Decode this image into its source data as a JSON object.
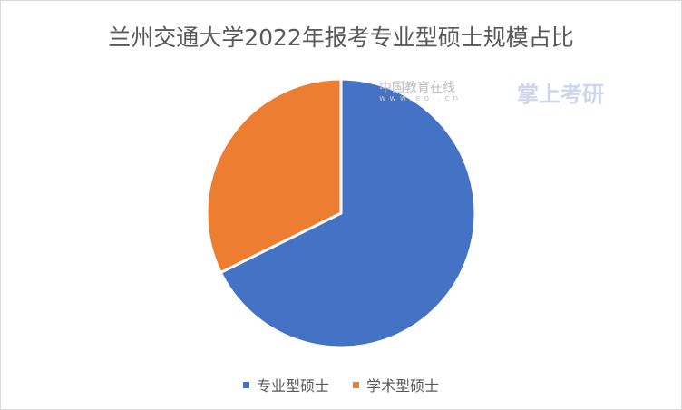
{
  "chart_data": {
    "type": "pie",
    "title": "兰州交通大学2022年报考专业型硕士规模占比",
    "categories": [
      "专业型硕士",
      "学术型硕士"
    ],
    "values": [
      67.7,
      32.3
    ],
    "colors": [
      "#4472c4",
      "#ed7d31"
    ],
    "start_angle": "12 o'clock, clockwise",
    "legend_position": "bottom"
  },
  "watermarks": {
    "eol_text": "中国教育在线",
    "eol_url": "www.eol.cn",
    "zsks_text": "掌上考研"
  }
}
